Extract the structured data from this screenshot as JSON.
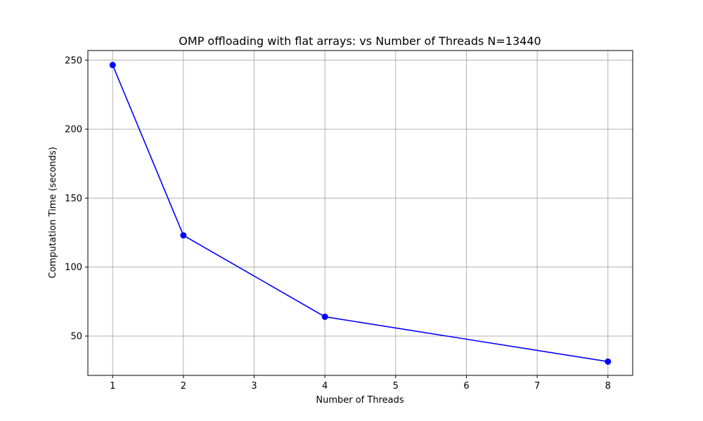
{
  "chart_data": {
    "type": "line",
    "title": "OMP offloading with flat arrays:  vs Number of Threads N=13440",
    "xlabel": "Number of Threads",
    "ylabel": "Computation Time (seconds)",
    "xlim": [
      0.65,
      8.35
    ],
    "ylim": [
      21.5,
      257
    ],
    "xticks": [
      1,
      2,
      3,
      4,
      5,
      6,
      7,
      8
    ],
    "yticks": [
      50,
      100,
      150,
      200,
      250
    ],
    "grid": true,
    "series": [
      {
        "x": [
          1,
          2,
          4,
          8
        ],
        "y": [
          246.5,
          123,
          64,
          31.5
        ],
        "color": "#0000ff",
        "marker": "circle"
      }
    ]
  }
}
